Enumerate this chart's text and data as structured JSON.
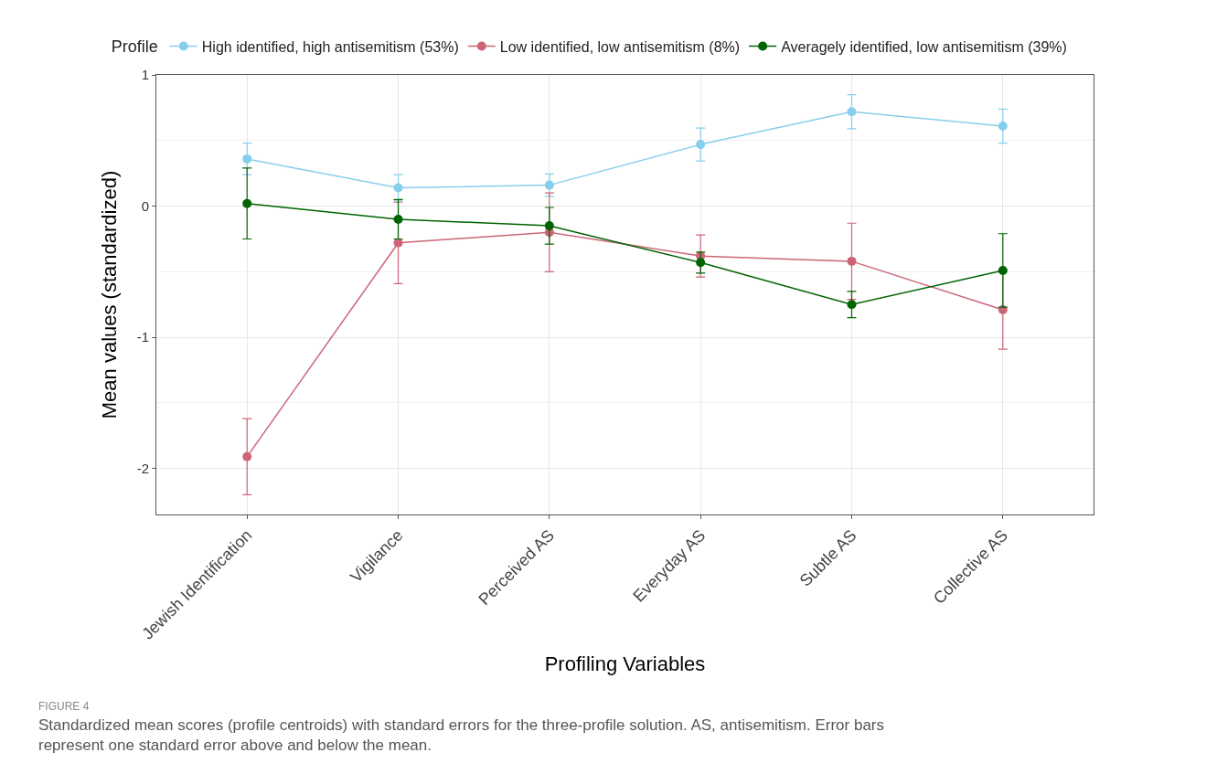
{
  "chart_data": {
    "type": "line",
    "xlabel": "Profiling Variables",
    "ylabel": "Mean values (standardized)",
    "legend_title": "Profile",
    "categories": [
      "Jewish Identification",
      "Vigilance",
      "Perceived AS",
      "Everyday AS",
      "Subtle AS",
      "Collective AS"
    ],
    "series": [
      {
        "name": "High identified, high antisemitism (53%)",
        "color": "#87ceeb",
        "values": [
          0.36,
          0.14,
          0.16,
          0.47,
          0.72,
          0.61
        ],
        "errors": [
          0.12,
          0.1,
          0.085,
          0.125,
          0.13,
          0.13
        ]
      },
      {
        "name": "Low identified, low antisemitism (8%)",
        "color": "#cc6677",
        "values": [
          -1.91,
          -0.28,
          -0.2,
          -0.38,
          -0.42,
          -0.79
        ],
        "errors": [
          0.29,
          0.31,
          0.3,
          0.16,
          0.29,
          0.3
        ]
      },
      {
        "name": "Averagely identified, low antisemitism (39%)",
        "color": "#006400",
        "values": [
          0.02,
          -0.1,
          -0.15,
          -0.43,
          -0.75,
          -0.49
        ],
        "errors": [
          0.27,
          0.15,
          0.14,
          0.08,
          0.1,
          0.28
        ]
      }
    ],
    "ylim": [
      -2.35,
      1.0
    ],
    "yticks": [
      {
        "value": -2,
        "label": "-2"
      },
      {
        "value": -1,
        "label": "-1"
      },
      0,
      1
    ],
    "grid": true,
    "legend": "top",
    "marker": "circle",
    "line_style": "solid",
    "annotations": [
      "FIGURE 4",
      "Standardized mean scores (profile centroids) with standard errors for the three-profile solution. AS, antisemitism. Error bars represent one standard error above and below the mean."
    ]
  }
}
